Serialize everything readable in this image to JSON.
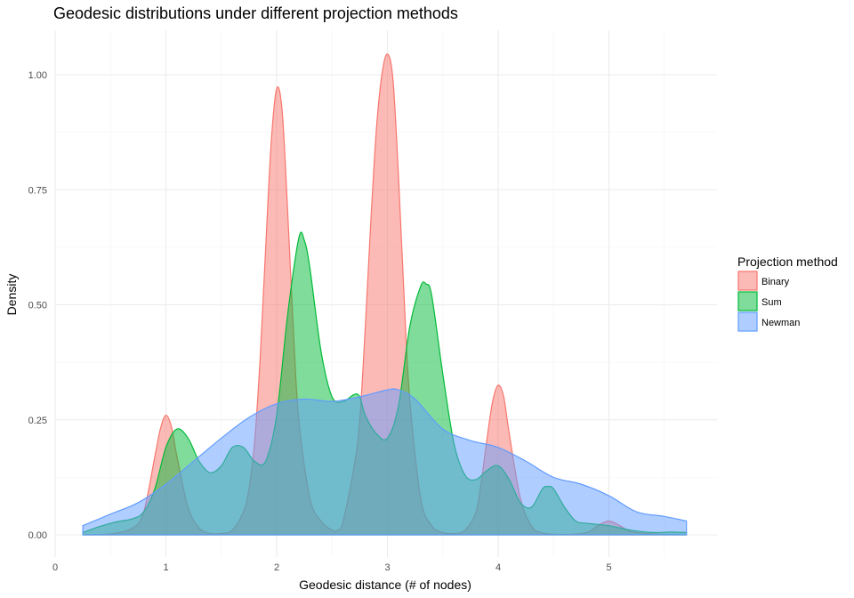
{
  "chart_data": {
    "type": "area",
    "subtype": "density",
    "title": "Geodesic distributions under different projection methods",
    "xlabel": "Geodesic distance (# of nodes)",
    "ylabel": "Density",
    "xlim": [
      0,
      5.9
    ],
    "ylim": [
      -0.06,
      1.1
    ],
    "x_ticks": [
      0,
      1,
      2,
      3,
      4,
      5
    ],
    "y_ticks": [
      0.0,
      0.25,
      0.5,
      0.75,
      1.0
    ],
    "y_tick_labels": [
      "0.00",
      "0.25",
      "0.50",
      "0.75",
      "1.00"
    ],
    "grid": true,
    "legend": {
      "title": "Projection method",
      "position": "right"
    },
    "series": [
      {
        "name": "Binary",
        "color": "#F8766D",
        "points": [
          [
            0.25,
            0
          ],
          [
            0.5,
            0.002
          ],
          [
            0.7,
            0.015
          ],
          [
            0.8,
            0.05
          ],
          [
            0.9,
            0.17
          ],
          [
            0.95,
            0.23
          ],
          [
            1.0,
            0.26
          ],
          [
            1.05,
            0.235
          ],
          [
            1.1,
            0.17
          ],
          [
            1.2,
            0.06
          ],
          [
            1.3,
            0.015
          ],
          [
            1.4,
            0.003
          ],
          [
            1.5,
            0.003
          ],
          [
            1.6,
            0.01
          ],
          [
            1.7,
            0.05
          ],
          [
            1.75,
            0.1
          ],
          [
            1.8,
            0.2
          ],
          [
            1.85,
            0.38
          ],
          [
            1.9,
            0.62
          ],
          [
            1.95,
            0.85
          ],
          [
            2.0,
            0.97
          ],
          [
            2.05,
            0.92
          ],
          [
            2.1,
            0.7
          ],
          [
            2.15,
            0.45
          ],
          [
            2.2,
            0.25
          ],
          [
            2.3,
            0.08
          ],
          [
            2.4,
            0.03
          ],
          [
            2.5,
            0.01
          ],
          [
            2.55,
            0.01
          ],
          [
            2.6,
            0.03
          ],
          [
            2.7,
            0.15
          ],
          [
            2.75,
            0.25
          ],
          [
            2.8,
            0.45
          ],
          [
            2.85,
            0.68
          ],
          [
            2.9,
            0.88
          ],
          [
            2.95,
            1.0
          ],
          [
            3.0,
            1.045
          ],
          [
            3.05,
            0.99
          ],
          [
            3.1,
            0.78
          ],
          [
            3.15,
            0.52
          ],
          [
            3.2,
            0.3
          ],
          [
            3.3,
            0.08
          ],
          [
            3.4,
            0.02
          ],
          [
            3.5,
            0.005
          ],
          [
            3.6,
            0.003
          ],
          [
            3.7,
            0.01
          ],
          [
            3.8,
            0.05
          ],
          [
            3.85,
            0.12
          ],
          [
            3.9,
            0.21
          ],
          [
            3.95,
            0.29
          ],
          [
            4.0,
            0.325
          ],
          [
            4.05,
            0.3
          ],
          [
            4.1,
            0.22
          ],
          [
            4.2,
            0.08
          ],
          [
            4.3,
            0.02
          ],
          [
            4.4,
            0.004
          ],
          [
            4.6,
            0.001
          ],
          [
            4.8,
            0.005
          ],
          [
            4.9,
            0.02
          ],
          [
            5.0,
            0.03
          ],
          [
            5.1,
            0.02
          ],
          [
            5.2,
            0.007
          ],
          [
            5.4,
            0.002
          ],
          [
            5.7,
            0
          ]
        ]
      },
      {
        "name": "Sum",
        "color": "#00BA38",
        "points": [
          [
            0.25,
            0.005
          ],
          [
            0.4,
            0.018
          ],
          [
            0.55,
            0.028
          ],
          [
            0.7,
            0.035
          ],
          [
            0.8,
            0.05
          ],
          [
            0.9,
            0.1
          ],
          [
            1.0,
            0.19
          ],
          [
            1.1,
            0.23
          ],
          [
            1.2,
            0.21
          ],
          [
            1.3,
            0.16
          ],
          [
            1.4,
            0.135
          ],
          [
            1.5,
            0.15
          ],
          [
            1.6,
            0.19
          ],
          [
            1.7,
            0.19
          ],
          [
            1.8,
            0.16
          ],
          [
            1.9,
            0.16
          ],
          [
            2.0,
            0.26
          ],
          [
            2.1,
            0.48
          ],
          [
            2.2,
            0.645
          ],
          [
            2.25,
            0.64
          ],
          [
            2.3,
            0.58
          ],
          [
            2.4,
            0.4
          ],
          [
            2.5,
            0.3
          ],
          [
            2.6,
            0.29
          ],
          [
            2.7,
            0.305
          ],
          [
            2.75,
            0.3
          ],
          [
            2.8,
            0.26
          ],
          [
            2.9,
            0.22
          ],
          [
            3.0,
            0.21
          ],
          [
            3.1,
            0.28
          ],
          [
            3.2,
            0.45
          ],
          [
            3.3,
            0.54
          ],
          [
            3.35,
            0.545
          ],
          [
            3.4,
            0.52
          ],
          [
            3.5,
            0.35
          ],
          [
            3.6,
            0.2
          ],
          [
            3.7,
            0.13
          ],
          [
            3.8,
            0.12
          ],
          [
            3.9,
            0.14
          ],
          [
            4.0,
            0.15
          ],
          [
            4.1,
            0.12
          ],
          [
            4.2,
            0.07
          ],
          [
            4.3,
            0.06
          ],
          [
            4.4,
            0.1
          ],
          [
            4.45,
            0.105
          ],
          [
            4.5,
            0.1
          ],
          [
            4.6,
            0.06
          ],
          [
            4.7,
            0.03
          ],
          [
            4.8,
            0.025
          ],
          [
            5.0,
            0.02
          ],
          [
            5.2,
            0.01
          ],
          [
            5.4,
            0.005
          ],
          [
            5.55,
            0.006
          ],
          [
            5.7,
            0.005
          ]
        ]
      },
      {
        "name": "Newman",
        "color": "#619CFF",
        "points": [
          [
            0.25,
            0.02
          ],
          [
            0.5,
            0.045
          ],
          [
            0.75,
            0.07
          ],
          [
            1.0,
            0.11
          ],
          [
            1.25,
            0.16
          ],
          [
            1.5,
            0.21
          ],
          [
            1.75,
            0.255
          ],
          [
            2.0,
            0.285
          ],
          [
            2.25,
            0.295
          ],
          [
            2.5,
            0.29
          ],
          [
            2.75,
            0.3
          ],
          [
            3.0,
            0.315
          ],
          [
            3.1,
            0.315
          ],
          [
            3.25,
            0.295
          ],
          [
            3.5,
            0.23
          ],
          [
            3.75,
            0.205
          ],
          [
            4.0,
            0.19
          ],
          [
            4.25,
            0.16
          ],
          [
            4.5,
            0.125
          ],
          [
            4.75,
            0.11
          ],
          [
            5.0,
            0.085
          ],
          [
            5.25,
            0.05
          ],
          [
            5.5,
            0.04
          ],
          [
            5.7,
            0.03
          ]
        ]
      }
    ]
  }
}
